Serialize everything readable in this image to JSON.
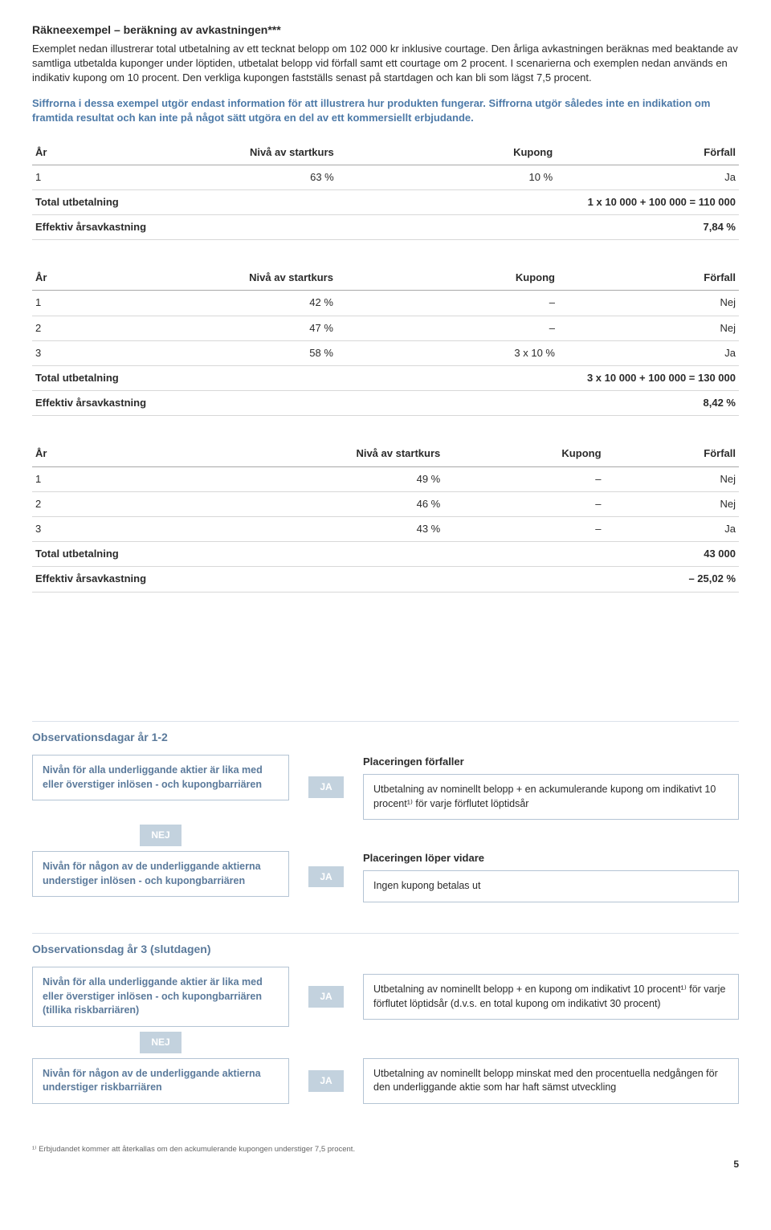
{
  "header": {
    "title": "Räkneexempel – beräkning av avkastningen***",
    "para": "Exemplet nedan illustrerar total utbetalning av ett tecknat belopp om 102 000 kr inklusive courtage. Den årliga avkastningen beräknas med beaktande av samtliga utbetalda kuponger under löptiden, utbetalat belopp vid förfall samt ett courtage om 2 procent. I scenarierna och exemplen nedan används en indikativ kupong om 10 procent. Den verkliga kupongen fastställs senast på startdagen och kan bli som lägst 7,5 procent.",
    "blue": "Siffrorna i dessa exempel utgör endast information för att illustrera hur produkten fungerar. Siffrorna utgör således inte en indikation om framtida resultat och kan inte på något sätt utgöra en del av ett kommersiellt erbjudande."
  },
  "tables": {
    "headers": {
      "year": "År",
      "level": "Nivå av startkurs",
      "coupon": "Kupong",
      "maturity": "Förfall"
    },
    "labels": {
      "total": "Total utbetalning",
      "effective": "Effektiv årsavkastning"
    },
    "t1": {
      "row1": {
        "year": "1",
        "level": "63 %",
        "coupon": "10 %",
        "maturity": "Ja"
      },
      "total_val": "1 x 10 000 + 100 000 = 110 000",
      "eff_val": "7,84 %"
    },
    "t2": {
      "row1": {
        "year": "1",
        "level": "42 %",
        "coupon": "–",
        "maturity": "Nej"
      },
      "row2": {
        "year": "2",
        "level": "47 %",
        "coupon": "–",
        "maturity": "Nej"
      },
      "row3": {
        "year": "3",
        "level": "58 %",
        "coupon": "3 x 10 %",
        "maturity": "Ja"
      },
      "total_val": "3 x 10 000 + 100 000 = 130 000",
      "eff_val": "8,42 %"
    },
    "t3": {
      "row1": {
        "year": "1",
        "level": "49 %",
        "coupon": "–",
        "maturity": "Nej"
      },
      "row2": {
        "year": "2",
        "level": "46 %",
        "coupon": "–",
        "maturity": "Nej"
      },
      "row3": {
        "year": "3",
        "level": "43 %",
        "coupon": "–",
        "maturity": "Ja"
      },
      "total_val": "43 000",
      "eff_val": "– 25,02 %"
    }
  },
  "flow1": {
    "title": "Observationsdagar år 1-2",
    "box1": "Nivån för alla underliggande aktier är lika med eller överstiger inlösen - och kupongbarriären",
    "box2": "Nivån för någon av de underliggande aktierna understiger inlösen - och kupongbarriären",
    "right1_title": "Placeringen förfaller",
    "right1_text": "Utbetalning av nominellt belopp + en ackumulerande kupong om indikativt 10 procent¹⁾ för varje förflutet löptidsår",
    "right2_title": "Placeringen löper vidare",
    "right2_text": "Ingen kupong betalas ut"
  },
  "flow2": {
    "title": "Observationsdag år 3 (slutdagen)",
    "box1": "Nivån för alla underliggande aktier är lika med eller överstiger inlösen - och kupongbarriären (tillika riskbarriären)",
    "box2": "Nivån för någon av de underliggande aktierna understiger riskbarriären",
    "right1_text": "Utbetalning av nominellt belopp + en kupong om indikativt 10 procent¹⁾ för varje förflutet löptidsår (d.v.s. en total kupong om indikativt 30 procent)",
    "right2_text": "Utbetalning av nominellt belopp minskat med den procentuella nedgången för den underliggande aktie som har haft sämst utveckling"
  },
  "tags": {
    "ja": "JA",
    "nej": "NEJ"
  },
  "footnote": "¹⁾ Erbjudandet kommer att återkallas om den ackumulerande kupongen understiger 7,5 procent.",
  "page": "5"
}
